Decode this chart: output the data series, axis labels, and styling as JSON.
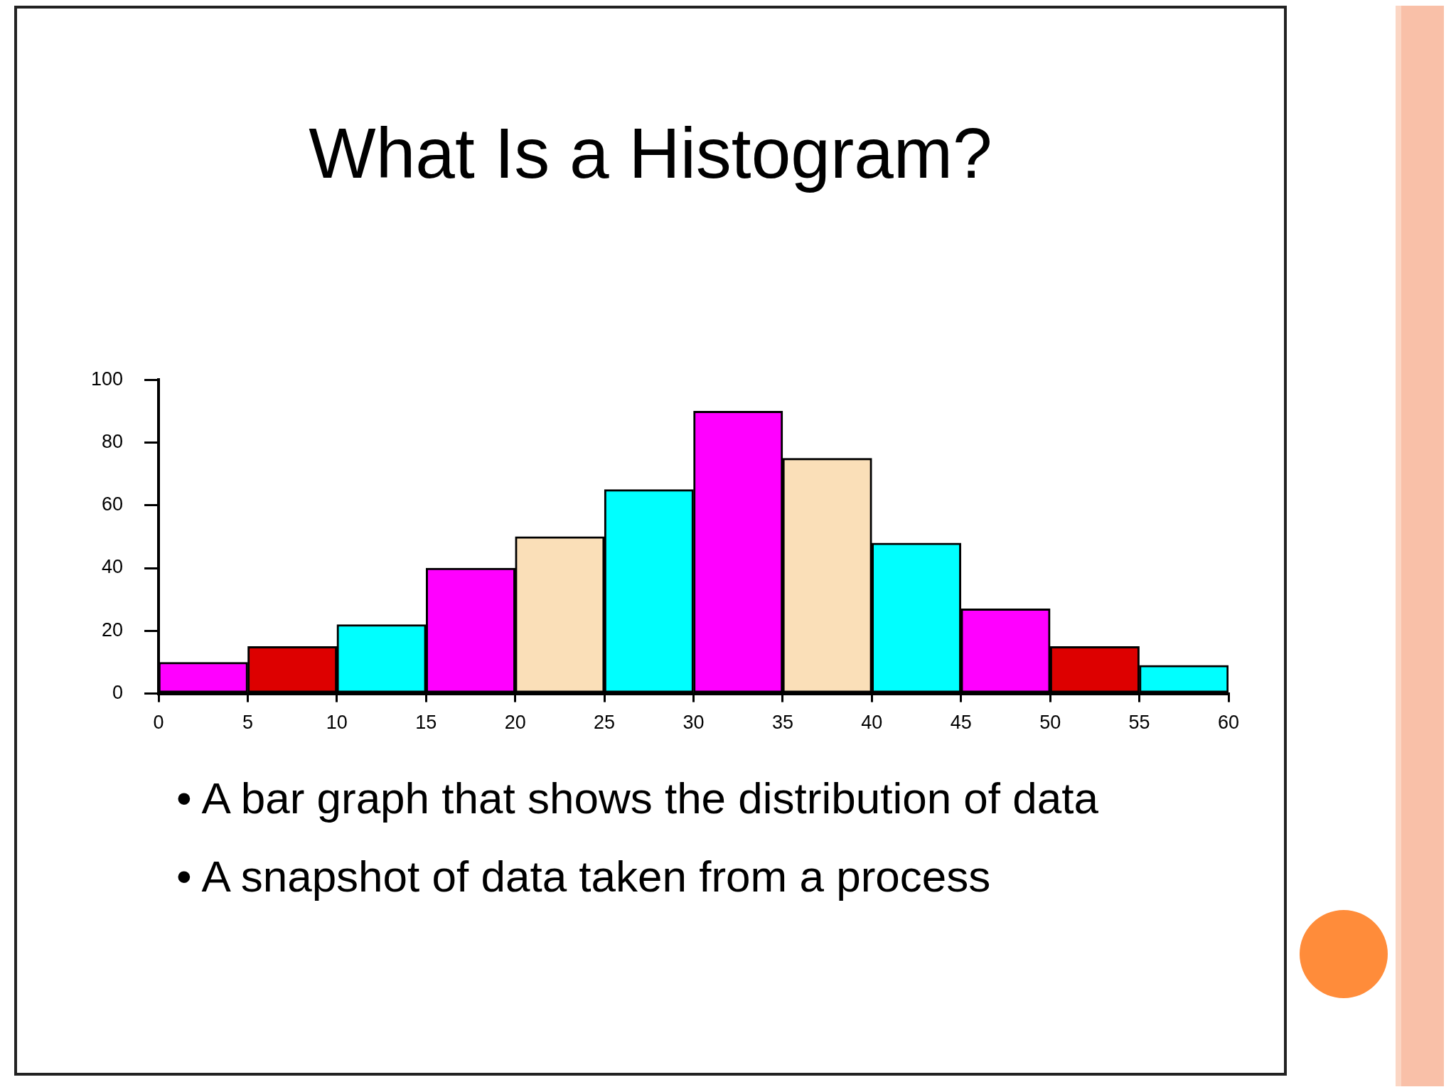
{
  "chart_data": {
    "type": "histogram",
    "title": "What Is a Histogram?",
    "bins": [
      0,
      5,
      10,
      15,
      20,
      25,
      30,
      35,
      40,
      45,
      50,
      55,
      60
    ],
    "values": [
      10,
      15,
      22,
      40,
      50,
      65,
      90,
      75,
      48,
      27,
      15,
      9
    ],
    "colors": [
      "#ff00ff",
      "#dd0000",
      "#00ffff",
      "#ff00ff",
      "#fadfb8",
      "#00ffff",
      "#ff00ff",
      "#fadfb8",
      "#00ffff",
      "#ff00ff",
      "#dd0000",
      "#00ffff"
    ],
    "xlim": [
      0,
      60
    ],
    "xticks": [
      0,
      5,
      10,
      15,
      20,
      25,
      30,
      35,
      40,
      45,
      50,
      55,
      60
    ],
    "ylim": [
      0,
      100
    ],
    "yticks": [
      0,
      20,
      40,
      60,
      80,
      100
    ],
    "grid": false,
    "legend": false,
    "annotations": [
      "• A bar graph that shows the distribution of data",
      "• A snapshot of data taken from a process"
    ]
  }
}
